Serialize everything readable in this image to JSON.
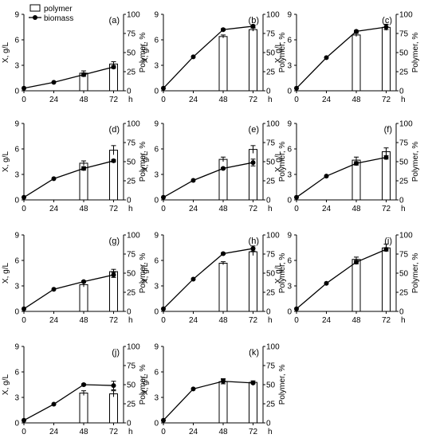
{
  "legend": {
    "polymer_label": "polymer",
    "biomass_label": "biomass"
  },
  "colors": {
    "axis": "#000000",
    "bar_fill": "#ffffff",
    "bar_stroke": "#000000",
    "line": "#000000",
    "marker": "#000000"
  },
  "chart_data": [
    {
      "type": "bar",
      "panel_label": "(a)",
      "xlabel": "h",
      "ylabel_left": "X, g/L",
      "ylabel_right": "Polymer, %",
      "x_ticks": [
        "0",
        "24",
        "48",
        "72"
      ],
      "ylim_left": [
        0,
        9
      ],
      "y_ticks_left": [
        0,
        3,
        6,
        9
      ],
      "ylim_right": [
        0,
        100
      ],
      "y_ticks_right": [
        0,
        25,
        50,
        75,
        100
      ],
      "polymer": {
        "x": [
          48,
          72
        ],
        "values": [
          23,
          35
        ],
        "errors": [
          3,
          3
        ]
      },
      "biomass": {
        "x": [
          0,
          24,
          48,
          72
        ],
        "values": [
          0.3,
          1.0,
          1.9,
          2.8
        ],
        "errors": [
          0,
          0,
          0.2,
          0.15
        ]
      }
    },
    {
      "type": "bar",
      "panel_label": "(b)",
      "xlabel": "h",
      "ylabel_left": "X, g/L",
      "ylabel_right": "Polymer, %",
      "x_ticks": [
        "0",
        "24",
        "48",
        "72"
      ],
      "ylim_left": [
        0,
        9
      ],
      "y_ticks_left": [
        0,
        3,
        6,
        9
      ],
      "ylim_right": [
        0,
        100
      ],
      "y_ticks_right": [
        0,
        25,
        50,
        75,
        100
      ],
      "polymer": {
        "x": [
          48,
          72
        ],
        "values": [
          71,
          80
        ],
        "errors": [
          2,
          2
        ]
      },
      "biomass": {
        "x": [
          0,
          24,
          48,
          72
        ],
        "values": [
          0.3,
          4.0,
          7.2,
          7.6
        ],
        "errors": [
          0,
          0,
          0.1,
          0.15
        ]
      }
    },
    {
      "type": "bar",
      "panel_label": "(c)",
      "xlabel": "h",
      "ylabel_left": "X, g/L",
      "ylabel_right": "Polymer, %",
      "x_ticks": [
        "0",
        "24",
        "48",
        "72"
      ],
      "ylim_left": [
        0,
        9
      ],
      "y_ticks_left": [
        0,
        3,
        6,
        9
      ],
      "ylim_right": [
        0,
        100
      ],
      "y_ticks_right": [
        0,
        25,
        50,
        75,
        100
      ],
      "polymer": {
        "x": [
          48,
          72
        ],
        "values": [
          73,
          83
        ],
        "errors": [
          2,
          4
        ]
      },
      "biomass": {
        "x": [
          0,
          24,
          48,
          72
        ],
        "values": [
          0.3,
          3.9,
          7.0,
          7.5
        ],
        "errors": [
          0,
          0,
          0.1,
          0.3
        ]
      }
    },
    {
      "type": "bar",
      "panel_label": "(d)",
      "xlabel": "h",
      "ylabel_left": "X, g/L",
      "ylabel_right": "Polymer, %",
      "x_ticks": [
        "0",
        "24",
        "48",
        "72"
      ],
      "ylim_left": [
        0,
        9
      ],
      "y_ticks_left": [
        0,
        3,
        6,
        9
      ],
      "ylim_right": [
        0,
        100
      ],
      "y_ticks_right": [
        0,
        25,
        50,
        75,
        100
      ],
      "polymer": {
        "x": [
          48,
          72
        ],
        "values": [
          48,
          65
        ],
        "errors": [
          3,
          6
        ]
      },
      "biomass": {
        "x": [
          0,
          24,
          48,
          72
        ],
        "values": [
          0.3,
          2.5,
          3.7,
          4.6
        ],
        "errors": [
          0,
          0,
          0.2,
          0.15
        ]
      }
    },
    {
      "type": "bar",
      "panel_label": "(e)",
      "xlabel": "h",
      "ylabel_left": "X, g/L",
      "ylabel_right": "Polymer, %",
      "x_ticks": [
        "0",
        "24",
        "48",
        "72"
      ],
      "ylim_left": [
        0,
        9
      ],
      "y_ticks_left": [
        0,
        3,
        6,
        9
      ],
      "ylim_right": [
        0,
        100
      ],
      "y_ticks_right": [
        0,
        25,
        50,
        75,
        100
      ],
      "polymer": {
        "x": [
          48,
          72
        ],
        "values": [
          53,
          66
        ],
        "errors": [
          3,
          5
        ]
      },
      "biomass": {
        "x": [
          0,
          24,
          48,
          72
        ],
        "values": [
          0.3,
          2.3,
          3.7,
          4.4
        ],
        "errors": [
          0,
          0,
          0.1,
          0.4
        ]
      }
    },
    {
      "type": "bar",
      "panel_label": "(f)",
      "xlabel": "h",
      "ylabel_left": "X, g/L",
      "ylabel_right": "Polymer, %",
      "x_ticks": [
        "0",
        "24",
        "48",
        "72"
      ],
      "ylim_left": [
        0,
        9
      ],
      "y_ticks_left": [
        0,
        3,
        6,
        9
      ],
      "ylim_right": [
        0,
        100
      ],
      "y_ticks_right": [
        0,
        25,
        50,
        75,
        100
      ],
      "polymer": {
        "x": [
          48,
          72
        ],
        "values": [
          52,
          63
        ],
        "errors": [
          4,
          5
        ]
      },
      "biomass": {
        "x": [
          0,
          24,
          48,
          72
        ],
        "values": [
          0.3,
          2.8,
          4.3,
          5.0
        ],
        "errors": [
          0,
          0,
          0.2,
          0.2
        ]
      }
    },
    {
      "type": "bar",
      "panel_label": "(g)",
      "xlabel": "h",
      "ylabel_left": "X, g/L",
      "ylabel_right": "Polymer, %",
      "x_ticks": [
        "0",
        "24",
        "48",
        "72"
      ],
      "ylim_left": [
        0,
        9
      ],
      "y_ticks_left": [
        0,
        3,
        6,
        9
      ],
      "ylim_right": [
        0,
        100
      ],
      "y_ticks_right": [
        0,
        25,
        50,
        75,
        100
      ],
      "polymer": {
        "x": [
          48,
          72
        ],
        "values": [
          35,
          52
        ],
        "errors": [
          3,
          3
        ]
      },
      "biomass": {
        "x": [
          0,
          24,
          48,
          72
        ],
        "values": [
          0.3,
          2.6,
          3.5,
          4.3
        ],
        "errors": [
          0,
          0,
          0.1,
          0.3
        ]
      }
    },
    {
      "type": "bar",
      "panel_label": "(h)",
      "xlabel": "h",
      "ylabel_left": "X, g/L",
      "ylabel_right": "Polymer, %",
      "x_ticks": [
        "0",
        "24",
        "48",
        "72"
      ],
      "ylim_left": [
        0,
        9
      ],
      "y_ticks_left": [
        0,
        3,
        6,
        9
      ],
      "ylim_right": [
        0,
        100
      ],
      "y_ticks_right": [
        0,
        25,
        50,
        75,
        100
      ],
      "polymer": {
        "x": [
          48,
          72
        ],
        "values": [
          63,
          78
        ],
        "errors": [
          2,
          5
        ]
      },
      "biomass": {
        "x": [
          0,
          24,
          48,
          72
        ],
        "values": [
          0.3,
          3.8,
          6.8,
          7.4
        ],
        "errors": [
          0,
          0,
          0.1,
          0.3
        ]
      }
    },
    {
      "type": "bar",
      "panel_label": "(i)",
      "xlabel": "h",
      "ylabel_left": "X, g/L",
      "ylabel_right": "Polymer, %",
      "x_ticks": [
        "0",
        "24",
        "48",
        "72"
      ],
      "ylim_left": [
        0,
        9
      ],
      "y_ticks_left": [
        0,
        3,
        6,
        9
      ],
      "ylim_right": [
        0,
        100
      ],
      "y_ticks_right": [
        0,
        25,
        50,
        75,
        100
      ],
      "polymer": {
        "x": [
          48,
          72
        ],
        "values": [
          68,
          83
        ],
        "errors": [
          3,
          5
        ]
      },
      "biomass": {
        "x": [
          0,
          24,
          48,
          72
        ],
        "values": [
          0.3,
          3.3,
          5.8,
          7.3
        ],
        "errors": [
          0,
          0,
          0.2,
          0.2
        ]
      }
    },
    {
      "type": "bar",
      "panel_label": "(j)",
      "xlabel": "h",
      "ylabel_left": "X, g/L",
      "ylabel_right": "Polymer, %",
      "x_ticks": [
        "0",
        "24",
        "48",
        "72"
      ],
      "ylim_left": [
        0,
        9
      ],
      "y_ticks_left": [
        0,
        3,
        6,
        9
      ],
      "ylim_right": [
        0,
        100
      ],
      "y_ticks_right": [
        0,
        25,
        50,
        75,
        100
      ],
      "polymer": {
        "x": [
          48,
          72
        ],
        "values": [
          39,
          38
        ],
        "errors": [
          3,
          4
        ]
      },
      "biomass": {
        "x": [
          0,
          24,
          48,
          72
        ],
        "values": [
          0.3,
          2.2,
          4.5,
          4.4
        ],
        "errors": [
          0,
          0,
          0.1,
          0.5
        ]
      }
    },
    {
      "type": "bar",
      "panel_label": "(k)",
      "xlabel": "h",
      "ylabel_left": "X, g/L",
      "ylabel_right": "Polymer, %",
      "x_ticks": [
        "0",
        "24",
        "48",
        "72"
      ],
      "ylim_left": [
        0,
        9
      ],
      "y_ticks_left": [
        0,
        3,
        6,
        9
      ],
      "ylim_right": [
        0,
        100
      ],
      "y_ticks_right": [
        0,
        25,
        50,
        75,
        100
      ],
      "polymer": {
        "x": [
          48,
          72
        ],
        "values": [
          54,
          53
        ],
        "errors": [
          3,
          2
        ]
      },
      "biomass": {
        "x": [
          0,
          24,
          48,
          72
        ],
        "values": [
          0.3,
          4.0,
          4.9,
          4.7
        ],
        "errors": [
          0,
          0,
          0.3,
          0.1
        ]
      }
    }
  ]
}
